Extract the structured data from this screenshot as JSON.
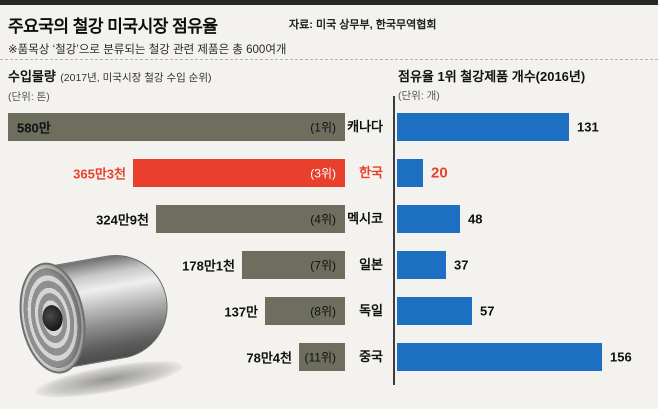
{
  "header": {
    "title": "주요국의 철강 미국시장 점유율",
    "source": "자료: 미국 상무부, 한국무역협회",
    "note": "※품목상 ‘철강’으로 분류되는 철강 관련 제품은 총 600여개"
  },
  "left_chart": {
    "title": "수입물량",
    "subtitle": "(2017년, 미국시장 철강 수입 순위)",
    "unit": "(단위: 톤)"
  },
  "right_chart": {
    "title": "점유율 1위 철강제품 개수(2016년)",
    "unit": "(단위: 개)"
  },
  "colors": {
    "bar_default": "#6e6e5f",
    "bar_highlight": "#e8402c",
    "bar_count": "#1d6fc1",
    "value_highlight": "#e8402c"
  },
  "keys": [
    "canada",
    "korea",
    "mexico",
    "japan",
    "germany",
    "china"
  ],
  "chart_data": [
    {
      "type": "bar",
      "title": "수입물량 (2017년, 미국시장 철강 수입 순위)",
      "unit": "톤",
      "orientation": "horizontal-right-aligned",
      "categories": [
        "캐나다",
        "한국",
        "멕시코",
        "일본",
        "독일",
        "중국"
      ],
      "values": [
        5800000,
        3653000,
        3249000,
        1781000,
        1370000,
        784000
      ],
      "value_labels": [
        "580만",
        "365만3천",
        "324만9천",
        "178만1천",
        "137만",
        "78만4천"
      ],
      "rank_labels": [
        "(1위)",
        "(3위)",
        "(4위)",
        "(7위)",
        "(8위)",
        "(11위)"
      ],
      "highlight_index": 1
    },
    {
      "type": "bar",
      "title": "점유율 1위 철강제품 개수(2016년)",
      "unit": "개",
      "orientation": "horizontal-left-aligned",
      "categories": [
        "캐나다",
        "한국",
        "멕시코",
        "일본",
        "독일",
        "중국"
      ],
      "values": [
        131,
        20,
        48,
        37,
        57,
        156
      ],
      "highlight_index": 1
    }
  ]
}
